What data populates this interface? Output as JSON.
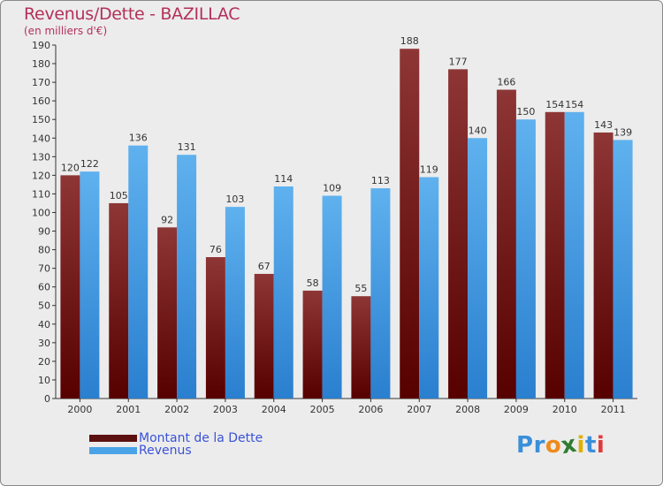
{
  "chart_data": {
    "type": "bar",
    "title": "Revenus/Dette - BAZILLAC",
    "subtitle": "(en milliers d'€)",
    "categories": [
      "2000",
      "2001",
      "2002",
      "2003",
      "2004",
      "2005",
      "2006",
      "2007",
      "2008",
      "2009",
      "2010",
      "2011"
    ],
    "series": [
      {
        "name": "Montant de la Dette",
        "color": "#7a1f1f",
        "values": [
          120,
          105,
          92,
          76,
          67,
          58,
          55,
          188,
          177,
          166,
          154,
          143
        ]
      },
      {
        "name": "Revenus",
        "color": "#4aa3e6",
        "values": [
          122,
          136,
          131,
          103,
          114,
          109,
          113,
          119,
          140,
          150,
          154,
          139
        ]
      }
    ],
    "ylim": [
      0,
      190
    ],
    "ytick_step": 10,
    "xlabel": "",
    "ylabel": "",
    "grid": false,
    "legend_position": "bottom-left"
  },
  "legend": {
    "items": [
      {
        "label": "Montant de la Dette",
        "color": "#5c1010"
      },
      {
        "label": "Revenus",
        "color": "#4aa3e6"
      }
    ]
  },
  "logo": {
    "letters": [
      "P",
      "r",
      "o",
      "x",
      "i",
      "t",
      "i"
    ],
    "colors": [
      "#3a8fd9",
      "#3a8fd9",
      "#f08a1c",
      "#2f7d2f",
      "#e0b000",
      "#3a8fd9",
      "#e03a3a"
    ]
  }
}
